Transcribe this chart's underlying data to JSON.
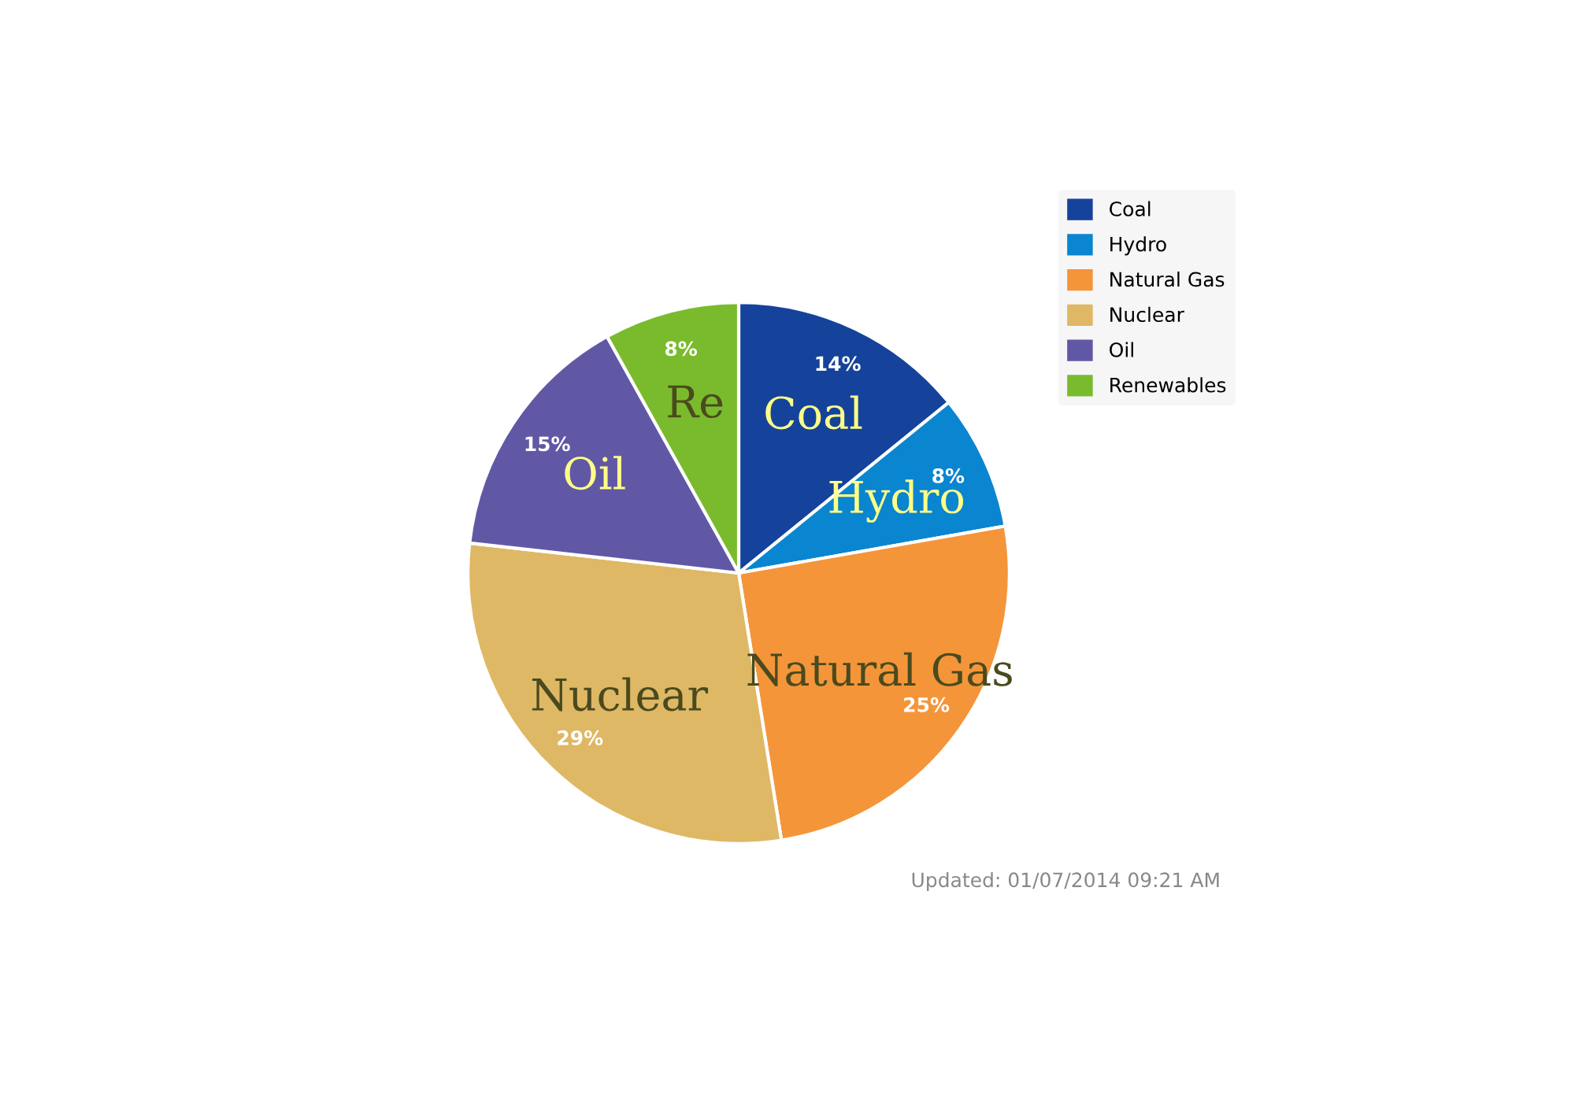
{
  "chart_data": {
    "type": "pie",
    "categories": [
      "Coal",
      "Hydro",
      "Natural Gas",
      "Nuclear",
      "Oil",
      "Renewables"
    ],
    "values": [
      14,
      8,
      25,
      29,
      15,
      8
    ],
    "value_labels": [
      "14%",
      "8%",
      "25%",
      "29%",
      "15%",
      "8%"
    ],
    "colors": [
      "#15439b",
      "#0a85d0",
      "#f4953a",
      "#dfb865",
      "#6158a5",
      "#79bb2c"
    ],
    "legend": "top right",
    "annotations": [
      {
        "text": "Coal",
        "x": "Coal"
      },
      {
        "text": "Hydro",
        "x": "Hydro"
      },
      {
        "text": "Natural Gas",
        "x": "Natural Gas"
      },
      {
        "text": "Nuclear",
        "x": "Nuclear"
      },
      {
        "text": "Oil",
        "x": "Oil"
      },
      {
        "text": "Re",
        "x": "Renewables"
      },
      "Updated: 01/07/2014 09:21 AM"
    ]
  }
}
